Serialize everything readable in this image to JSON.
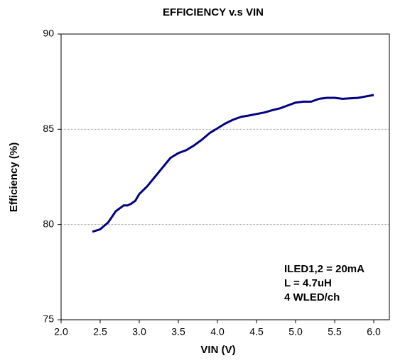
{
  "chart_data": {
    "type": "line",
    "title": "EFFICIENCY v.s VIN",
    "x_label": "VIN (V)",
    "y_label": "Efficiency (%)",
    "annotations": [
      "ILED1,2 = 20mA",
      "L = 4.7uH",
      "4 WLED/ch"
    ],
    "x": [
      2.4,
      2.5,
      2.6,
      2.7,
      2.8,
      2.85,
      2.9,
      2.95,
      3.0,
      3.1,
      3.2,
      3.3,
      3.4,
      3.5,
      3.6,
      3.7,
      3.8,
      3.9,
      4.0,
      4.1,
      4.2,
      4.3,
      4.4,
      4.5,
      4.6,
      4.7,
      4.8,
      4.9,
      5.0,
      5.1,
      5.2,
      5.3,
      5.4,
      5.5,
      5.6,
      5.8,
      6.0
    ],
    "series": [
      {
        "name": "Efficiency",
        "color": "#000080",
        "values": [
          79.62,
          79.75,
          80.1,
          80.7,
          81.0,
          81.0,
          81.1,
          81.25,
          81.6,
          82.0,
          82.5,
          83.0,
          83.5,
          83.75,
          83.9,
          84.15,
          84.45,
          84.8,
          85.05,
          85.3,
          85.5,
          85.65,
          85.72,
          85.8,
          85.88,
          86.0,
          86.1,
          86.25,
          86.4,
          86.45,
          86.45,
          86.6,
          86.65,
          86.65,
          86.6,
          86.65,
          86.8
        ]
      }
    ],
    "xlim": [
      2.0,
      6.2
    ],
    "xticks": [
      {
        "value": 2.0,
        "label": "2.0"
      },
      2.5,
      {
        "value": 3.0,
        "label": "3.0"
      },
      3.5,
      {
        "value": 4.0,
        "label": "4.0"
      },
      4.5,
      {
        "value": 5.0,
        "label": "5.0"
      },
      5.5,
      {
        "value": 6.0,
        "label": "6.0"
      }
    ],
    "ylim": [
      75,
      90
    ],
    "yticks": [
      75,
      80,
      85,
      90
    ],
    "grid": true
  }
}
